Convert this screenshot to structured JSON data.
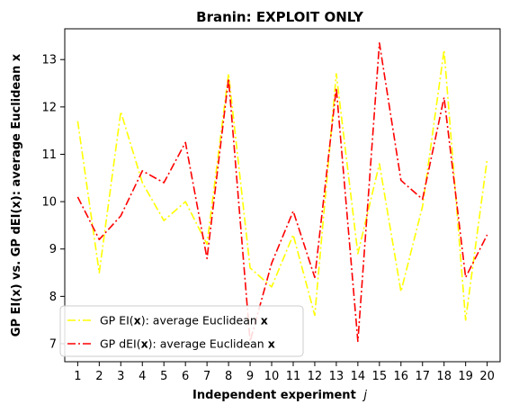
{
  "chart_data": {
    "type": "line",
    "title": "Branin: EXPLOIT ONLY",
    "xlabel": "Independent experiment",
    "xlabel_var": "j",
    "ylabel": "GP EI(x) vs. GP dEI(x): average Euclidean x",
    "x": [
      1,
      2,
      3,
      4,
      5,
      6,
      7,
      8,
      9,
      10,
      11,
      12,
      13,
      14,
      15,
      16,
      17,
      18,
      19,
      20
    ],
    "xlim": [
      0.4,
      20.6
    ],
    "ylim": [
      6.62,
      13.65
    ],
    "yticks": [
      7,
      8,
      9,
      10,
      11,
      12,
      13
    ],
    "grid": false,
    "legend_position": "lower-left",
    "series": [
      {
        "name": "GP EI(x): average Euclidean x",
        "legend_parts": [
          "GP EI(",
          "x",
          "): average Euclidean ",
          "x"
        ],
        "color": "#ffff00",
        "linestyle": "dashdot",
        "values": [
          11.7,
          8.5,
          11.9,
          10.4,
          9.6,
          10.0,
          9.1,
          12.7,
          8.6,
          8.2,
          9.3,
          7.6,
          12.7,
          8.9,
          10.8,
          8.1,
          9.9,
          13.2,
          7.5,
          10.9
        ]
      },
      {
        "name": "GP dEI(x): average Euclidean x",
        "legend_parts": [
          "GP dEI(",
          "x",
          "): average Euclidean ",
          "x"
        ],
        "color": "#ff0000",
        "linestyle": "dashdot",
        "values": [
          10.1,
          9.2,
          9.7,
          10.65,
          10.4,
          11.25,
          8.8,
          12.6,
          7.05,
          8.7,
          9.8,
          8.4,
          12.4,
          7.05,
          13.35,
          10.45,
          10.05,
          12.2,
          8.4,
          9.3
        ]
      }
    ]
  }
}
